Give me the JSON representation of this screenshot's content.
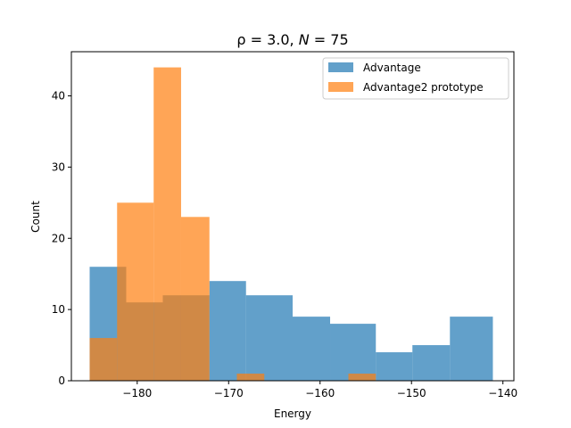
{
  "chart_data": {
    "type": "bar",
    "title_prefix": "ρ = 3.0, ",
    "title_n": "N",
    "title_eq": " = 75",
    "xlabel": "Energy",
    "ylabel": "Count",
    "xlim": [
      -187.2,
      -138.8
    ],
    "ylim": [
      0,
      46.2
    ],
    "xticks": [
      -180,
      -170,
      -160,
      -150,
      -140
    ],
    "xtick_labels": [
      "−180",
      "−170",
      "−160",
      "−150",
      "−140"
    ],
    "yticks": [
      0,
      10,
      20,
      30,
      40
    ],
    "ytick_labels": [
      "0",
      "10",
      "20",
      "30",
      "40"
    ],
    "legend_position": "top-right",
    "series": [
      {
        "name": "Advantage",
        "color": "#1f77b4",
        "opacity": 0.7,
        "bins": [
          {
            "x0": -185.2,
            "x1": -181.2,
            "value": 16
          },
          {
            "x0": -181.2,
            "x1": -177.2,
            "value": 11
          },
          {
            "x0": -177.2,
            "x1": -172.1,
            "value": 12
          },
          {
            "x0": -172.1,
            "x1": -168.1,
            "value": 14
          },
          {
            "x0": -168.1,
            "x1": -163.0,
            "value": 12
          },
          {
            "x0": -163.0,
            "x1": -158.9,
            "value": 9
          },
          {
            "x0": -158.9,
            "x1": -153.9,
            "value": 8
          },
          {
            "x0": -153.9,
            "x1": -149.9,
            "value": 4
          },
          {
            "x0": -149.9,
            "x1": -145.8,
            "value": 5
          },
          {
            "x0": -145.8,
            "x1": -141.1,
            "value": 9
          }
        ]
      },
      {
        "name": "Advantage2 prototype",
        "color": "#ff7f0e",
        "opacity": 0.7,
        "bins": [
          {
            "x0": -185.2,
            "x1": -182.2,
            "value": 6
          },
          {
            "x0": -182.2,
            "x1": -178.2,
            "value": 25
          },
          {
            "x0": -178.2,
            "x1": -175.2,
            "value": 44
          },
          {
            "x0": -175.2,
            "x1": -172.1,
            "value": 23
          },
          {
            "x0": -172.1,
            "x1": -169.1,
            "value": 0
          },
          {
            "x0": -169.1,
            "x1": -166.1,
            "value": 1
          },
          {
            "x0": -166.1,
            "x1": -163.0,
            "value": 0
          },
          {
            "x0": -163.0,
            "x1": -159.9,
            "value": 0
          },
          {
            "x0": -159.9,
            "x1": -156.9,
            "value": 0
          },
          {
            "x0": -156.9,
            "x1": -153.9,
            "value": 1
          }
        ]
      }
    ]
  }
}
